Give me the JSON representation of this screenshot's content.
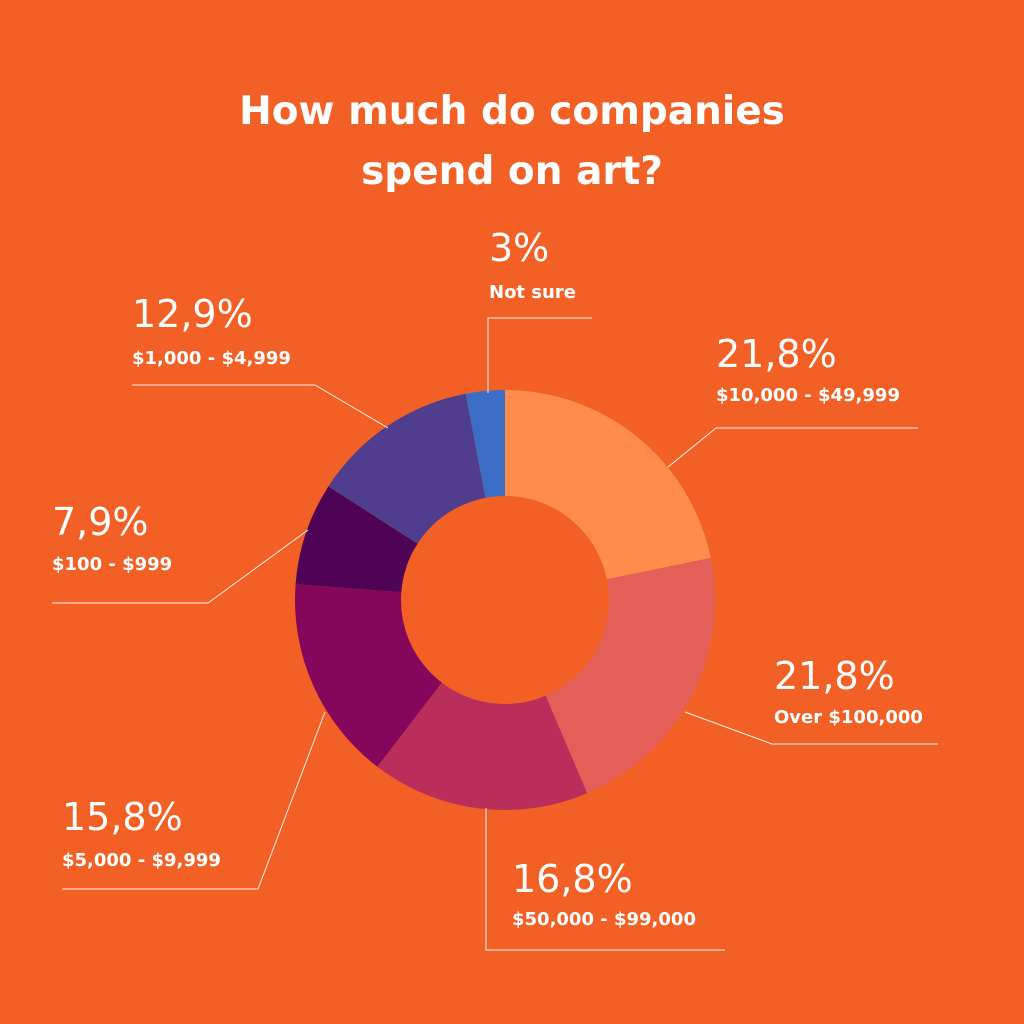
{
  "chart_data": {
    "type": "pie",
    "title_lines": [
      "How much do companies",
      "spend on art?"
    ],
    "slices": [
      {
        "label": "$10,000 - $49,999",
        "value": 21.8,
        "value_text": "21,8%",
        "color": "#FF8C4C"
      },
      {
        "label": "Over $100,000",
        "value": 21.8,
        "value_text": "21,8%",
        "color": "#E45F57"
      },
      {
        "label": "$50,000 - $99,000",
        "value": 16.8,
        "value_text": "16,8%",
        "color": "#BA2E5C"
      },
      {
        "label": "$5,000 - $9,999",
        "value": 15.8,
        "value_text": "15,8%",
        "color": "#85075B"
      },
      {
        "label": "$100 - $999",
        "value": 7.9,
        "value_text": "7,9%",
        "color": "#4E0355"
      },
      {
        "label": "$1,000 - $4,999",
        "value": 12.9,
        "value_text": "12,9%",
        "color": "#513D8E"
      },
      {
        "label": "Not sure",
        "value": 3,
        "value_text": "3%",
        "color": "#3C6EC6"
      }
    ]
  }
}
